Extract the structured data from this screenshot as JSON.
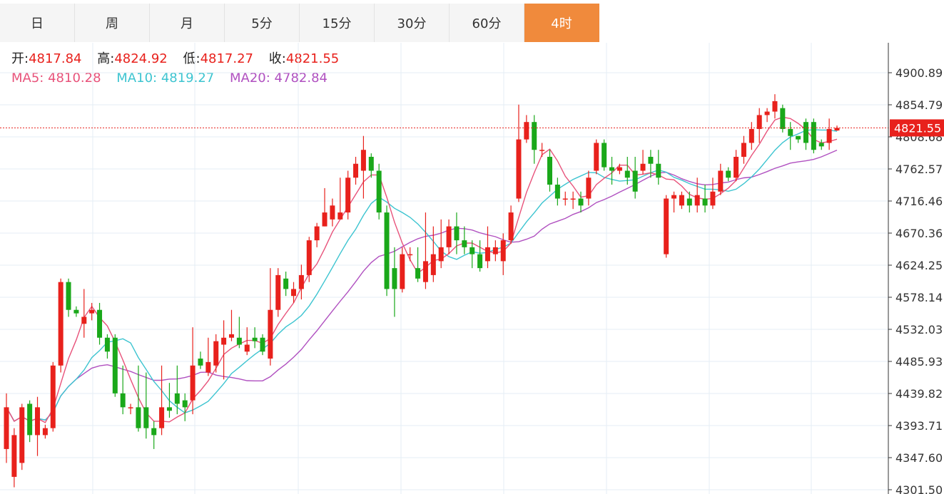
{
  "tabs": [
    {
      "label": "日",
      "active": false
    },
    {
      "label": "周",
      "active": false
    },
    {
      "label": "月",
      "active": false
    },
    {
      "label": "5分",
      "active": false
    },
    {
      "label": "15分",
      "active": false
    },
    {
      "label": "30分",
      "active": false
    },
    {
      "label": "60分",
      "active": false
    },
    {
      "label": "4时",
      "active": true
    }
  ],
  "ohlc": {
    "open_label": "开:",
    "open": "4817.84",
    "high_label": "高:",
    "high": "4824.92",
    "low_label": "低:",
    "low": "4817.27",
    "close_label": "收:",
    "close": "4821.55"
  },
  "ma": {
    "ma5_label": "MA5:",
    "ma5": "4810.28",
    "ma10_label": "MA10:",
    "ma10": "4819.27",
    "ma20_label": "MA20:",
    "ma20": "4782.84"
  },
  "colors": {
    "up": "#e8211c",
    "down": "#1aa81a",
    "ma5": "#e8527a",
    "ma10": "#3cc4d0",
    "ma20": "#b050c0",
    "grid": "#e4edf4",
    "price_line": "#e8211c",
    "active_tab": "#f08a3c"
  },
  "chart_data": {
    "type": "candlestick",
    "y_ticks": [
      "4900.89",
      "4854.79",
      "4808.68",
      "4762.57",
      "4716.46",
      "4670.36",
      "4624.25",
      "4578.14",
      "4532.03",
      "4485.93",
      "4439.82",
      "4393.71",
      "4347.60",
      "4301.50"
    ],
    "ylim": [
      4301.5,
      4900.89
    ],
    "current_price": "4821.55",
    "grid": true,
    "candles": [
      [
        4360,
        4420,
        4340,
        4440
      ],
      [
        4320,
        4380,
        4305,
        4390
      ],
      [
        4340,
        4420,
        4330,
        4425
      ],
      [
        4425,
        4380,
        4370,
        4430
      ],
      [
        4380,
        4420,
        4350,
        4435
      ],
      [
        4380,
        4390,
        4375,
        4395
      ],
      [
        4390,
        4480,
        4385,
        4485
      ],
      [
        4480,
        4600,
        4470,
        4605
      ],
      [
        4600,
        4560,
        4550,
        4605
      ],
      [
        4560,
        4555,
        4550,
        4565
      ],
      [
        4540,
        4550,
        4520,
        4590
      ],
      [
        4555,
        4560,
        4545,
        4570
      ],
      [
        4560,
        4520,
        4510,
        4570
      ],
      [
        4520,
        4500,
        4490,
        4525
      ],
      [
        4520,
        4440,
        4435,
        4525
      ],
      [
        4440,
        4420,
        4410,
        4480
      ],
      [
        4420,
        4420,
        4410,
        4425
      ],
      [
        4420,
        4390,
        4385,
        4480
      ],
      [
        4420,
        4390,
        4375,
        4470
      ],
      [
        4390,
        4380,
        4360,
        4400
      ],
      [
        4390,
        4420,
        4380,
        4480
      ],
      [
        4420,
        4415,
        4405,
        4455
      ],
      [
        4440,
        4425,
        4410,
        4480
      ],
      [
        4430,
        4420,
        4400,
        4440
      ],
      [
        4430,
        4480,
        4410,
        4535
      ],
      [
        4490,
        4480,
        4475,
        4500
      ],
      [
        4470,
        4485,
        4465,
        4520
      ],
      [
        4480,
        4515,
        4470,
        4525
      ],
      [
        4510,
        4520,
        4460,
        4545
      ],
      [
        4520,
        4525,
        4515,
        4560
      ],
      [
        4520,
        4510,
        4505,
        4550
      ],
      [
        4500,
        4510,
        4495,
        4535
      ],
      [
        4520,
        4515,
        4505,
        4535
      ],
      [
        4520,
        4500,
        4495,
        4525
      ],
      [
        4490,
        4560,
        4480,
        4620
      ],
      [
        4560,
        4610,
        4550,
        4620
      ],
      [
        4605,
        4590,
        4580,
        4615
      ],
      [
        4580,
        4590,
        4570,
        4600
      ],
      [
        4590,
        4610,
        4575,
        4625
      ],
      [
        4610,
        4660,
        4600,
        4665
      ],
      [
        4660,
        4680,
        4650,
        4685
      ],
      [
        4680,
        4700,
        4680,
        4735
      ],
      [
        4690,
        4710,
        4680,
        4720
      ],
      [
        4690,
        4700,
        4690,
        4750
      ],
      [
        4700,
        4750,
        4690,
        4760
      ],
      [
        4750,
        4770,
        4740,
        4780
      ],
      [
        4760,
        4790,
        4720,
        4810
      ],
      [
        4780,
        4760,
        4750,
        4785
      ],
      [
        4760,
        4700,
        4690,
        4770
      ],
      [
        4700,
        4590,
        4580,
        4710
      ],
      [
        4620,
        4590,
        4550,
        4650
      ],
      [
        4590,
        4640,
        4585,
        4650
      ],
      [
        4640,
        4640,
        4630,
        4650
      ],
      [
        4620,
        4605,
        4600,
        4650
      ],
      [
        4600,
        4630,
        4590,
        4700
      ],
      [
        4610,
        4640,
        4600,
        4680
      ],
      [
        4630,
        4650,
        4620,
        4690
      ],
      [
        4650,
        4680,
        4640,
        4690
      ],
      [
        4680,
        4660,
        4640,
        4700
      ],
      [
        4660,
        4650,
        4640,
        4680
      ],
      [
        4650,
        4640,
        4620,
        4660
      ],
      [
        4640,
        4620,
        4615,
        4660
      ],
      [
        4630,
        4650,
        4620,
        4680
      ],
      [
        4640,
        4650,
        4630,
        4660
      ],
      [
        4630,
        4660,
        4610,
        4670
      ],
      [
        4660,
        4700,
        4655,
        4710
      ],
      [
        4720,
        4805,
        4715,
        4855
      ],
      [
        4805,
        4830,
        4800,
        4840
      ],
      [
        4830,
        4790,
        4770,
        4840
      ],
      [
        4790,
        4790,
        4780,
        4800
      ],
      [
        4780,
        4740,
        4730,
        4790
      ],
      [
        4740,
        4720,
        4710,
        4750
      ],
      [
        4720,
        4720,
        4710,
        4730
      ],
      [
        4720,
        4720,
        4705,
        4730
      ],
      [
        4720,
        4710,
        4700,
        4730
      ],
      [
        4720,
        4750,
        4710,
        4760
      ],
      [
        4760,
        4800,
        4755,
        4805
      ],
      [
        4800,
        4765,
        4760,
        4805
      ],
      [
        4765,
        4760,
        4740,
        4780
      ],
      [
        4760,
        4765,
        4755,
        4770
      ],
      [
        4760,
        4750,
        4740,
        4780
      ],
      [
        4760,
        4730,
        4720,
        4780
      ],
      [
        4760,
        4770,
        4755,
        4790
      ],
      [
        4780,
        4770,
        4750,
        4790
      ],
      [
        4770,
        4750,
        4740,
        4790
      ],
      [
        4640,
        4720,
        4635,
        4725
      ],
      [
        4720,
        4725,
        4700,
        4730
      ],
      [
        4710,
        4725,
        4705,
        4730
      ],
      [
        4720,
        4710,
        4700,
        4730
      ],
      [
        4710,
        4725,
        4700,
        4750
      ],
      [
        4720,
        4710,
        4700,
        4740
      ],
      [
        4710,
        4730,
        4705,
        4750
      ],
      [
        4730,
        4760,
        4725,
        4770
      ],
      [
        4760,
        4750,
        4745,
        4765
      ],
      [
        4750,
        4780,
        4745,
        4790
      ],
      [
        4780,
        4800,
        4770,
        4810
      ],
      [
        4800,
        4820,
        4790,
        4830
      ],
      [
        4820,
        4840,
        4800,
        4850
      ],
      [
        4840,
        4845,
        4830,
        4850
      ],
      [
        4845,
        4860,
        4835,
        4870
      ],
      [
        4850,
        4820,
        4815,
        4855
      ],
      [
        4820,
        4810,
        4790,
        4830
      ],
      [
        4810,
        4805,
        4800,
        4810
      ],
      [
        4830,
        4800,
        4790,
        4835
      ],
      [
        4830,
        4790,
        4785,
        4835
      ],
      [
        4800,
        4795,
        4790,
        4805
      ],
      [
        4800,
        4820,
        4790,
        4835
      ],
      [
        4817.84,
        4821.55,
        4817.27,
        4824.92
      ]
    ]
  }
}
